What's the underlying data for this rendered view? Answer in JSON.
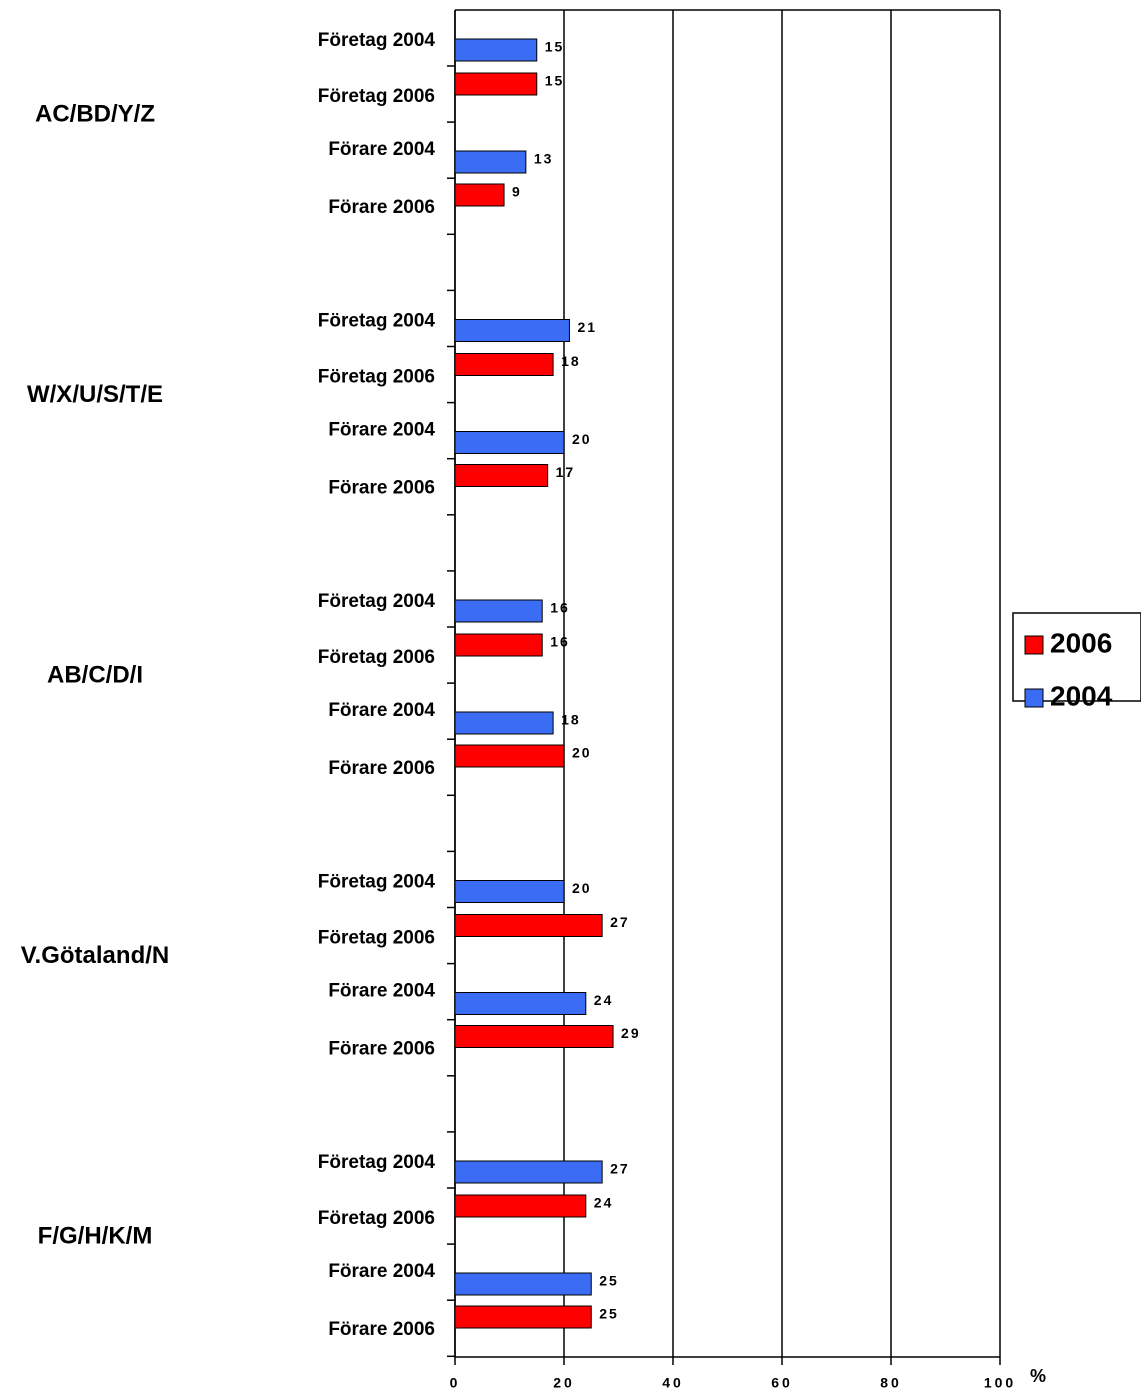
{
  "chart_data": {
    "type": "barh",
    "groups": [
      "AC/BD/Y/Z",
      "W/X/U/S/T/E",
      "AB/C/D/I",
      "V.Götaland/N",
      "F/G/H/K/M"
    ],
    "categories": [
      "Företag 2004",
      "Företag 2006",
      "Förare 2004",
      "Förare 2006",
      "Företag 2004",
      "Företag 2006",
      "Förare 2004",
      "Förare 2006",
      "Företag 2004",
      "Företag 2006",
      "Förare 2004",
      "Förare 2006",
      "Företag 2004",
      "Företag 2006",
      "Förare 2004",
      "Förare 2006",
      "Företag 2004",
      "Företag 2006",
      "Förare 2004",
      "Förare 2006"
    ],
    "series": [
      {
        "name": "2006",
        "color": "#ff0000",
        "values": [
          null,
          15,
          null,
          9,
          null,
          18,
          null,
          17,
          null,
          16,
          null,
          20,
          null,
          27,
          null,
          29,
          null,
          24,
          null,
          25
        ]
      },
      {
        "name": "2004",
        "color": "#3a6cf4",
        "values": [
          15,
          null,
          13,
          null,
          21,
          null,
          20,
          null,
          16,
          null,
          18,
          null,
          20,
          null,
          24,
          null,
          27,
          null,
          25,
          null
        ]
      }
    ],
    "xlabel": "%",
    "xlim": [
      0,
      100
    ],
    "xticks": [
      0,
      20,
      40,
      60,
      80,
      100
    ],
    "grid": true
  }
}
